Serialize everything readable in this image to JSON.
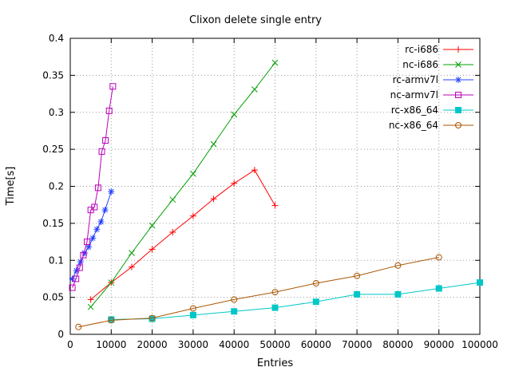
{
  "chart_data": {
    "type": "line",
    "title": "Clixon delete single entry",
    "xlabel": "Entries",
    "ylabel": "Time[s]",
    "xlim": [
      0,
      100000
    ],
    "ylim": [
      0,
      0.4
    ],
    "xticks": [
      0,
      10000,
      20000,
      30000,
      40000,
      50000,
      60000,
      70000,
      80000,
      90000,
      100000
    ],
    "yticks": [
      0,
      0.05,
      0.1,
      0.15,
      0.2,
      0.25,
      0.3,
      0.35,
      0.4
    ],
    "grid": true,
    "legend_position": "top-right-inside",
    "grid_color": "#9a9a9a",
    "border_color": "#000000",
    "series": [
      {
        "name": "rc-i686",
        "color": "#ff0000",
        "marker": "plus",
        "x": [
          5000,
          10000,
          15000,
          20000,
          25000,
          30000,
          35000,
          40000,
          45000,
          50000
        ],
        "y": [
          0.047,
          0.07,
          0.091,
          0.115,
          0.138,
          0.16,
          0.183,
          0.204,
          0.222,
          0.174
        ]
      },
      {
        "name": "nc-i686",
        "color": "#00a000",
        "marker": "cross",
        "x": [
          5000,
          10000,
          15000,
          20000,
          25000,
          30000,
          35000,
          40000,
          45000,
          50000
        ],
        "y": [
          0.037,
          0.07,
          0.11,
          0.147,
          0.182,
          0.217,
          0.257,
          0.297,
          0.331,
          0.367
        ]
      },
      {
        "name": "rc-armv7l",
        "color": "#2440ff",
        "marker": "asterisk",
        "x": [
          500,
          1500,
          2500,
          3500,
          4500,
          5500,
          6500,
          7500,
          8500,
          10000
        ],
        "y": [
          0.075,
          0.086,
          0.098,
          0.11,
          0.118,
          0.13,
          0.142,
          0.152,
          0.168,
          0.193
        ]
      },
      {
        "name": "nc-armv7l",
        "color": "#bb00bb",
        "marker": "square-open",
        "x": [
          500,
          1400,
          2300,
          3200,
          4100,
          5000,
          5900,
          6800,
          7700,
          8600,
          9500,
          10400
        ],
        "y": [
          0.063,
          0.075,
          0.09,
          0.107,
          0.125,
          0.168,
          0.172,
          0.198,
          0.247,
          0.262,
          0.302,
          0.335
        ]
      },
      {
        "name": "rc-x86_64",
        "color": "#00c7c7",
        "marker": "square-filled",
        "x": [
          10000,
          20000,
          30000,
          40000,
          50000,
          60000,
          70000,
          80000,
          90000,
          100000
        ],
        "y": [
          0.02,
          0.021,
          0.026,
          0.031,
          0.036,
          0.044,
          0.054,
          0.054,
          0.062,
          0.07
        ]
      },
      {
        "name": "nc-x86_64",
        "color": "#aa5500",
        "marker": "circle-open",
        "x": [
          2000,
          10000,
          20000,
          30000,
          40000,
          50000,
          60000,
          70000,
          80000,
          90000
        ],
        "y": [
          0.01,
          0.019,
          0.022,
          0.035,
          0.047,
          0.057,
          0.069,
          0.079,
          0.093,
          0.104
        ]
      }
    ]
  }
}
